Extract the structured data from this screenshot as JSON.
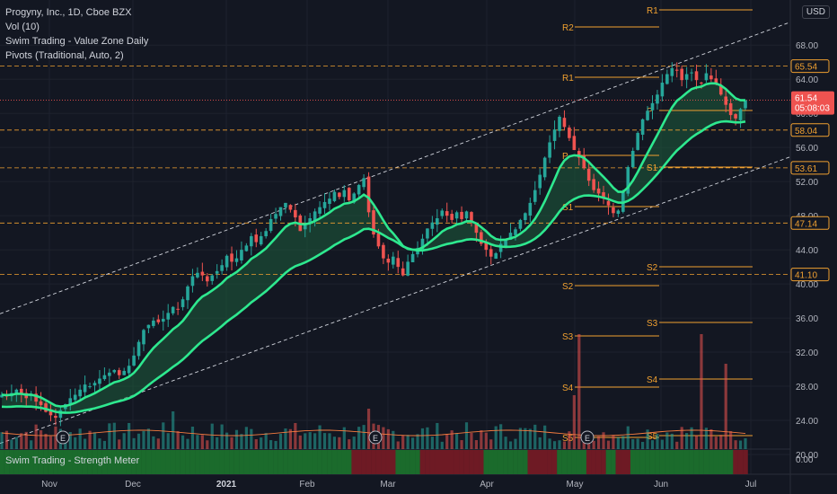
{
  "header": {
    "symbol_line": "Progyny, Inc., 1D, Cboe BZX",
    "indicators": [
      "Vol (10)",
      "Swim Trading - Value Zone Daily",
      "Pivots (Traditional, Auto, 2)"
    ],
    "currency": "USD"
  },
  "lower_panel": {
    "title": "Swim Trading - Strength Meter",
    "tick": "0.00"
  },
  "colors": {
    "background": "#131722",
    "up": "#26a69a",
    "down": "#ef5350",
    "band": "#2ee88f",
    "pivot": "#f0a030",
    "strength_green": "#1b6b2c",
    "strength_red": "#6e1a24"
  },
  "chart_data": {
    "type": "candlestick",
    "x_months": [
      "Nov",
      "Dec",
      "2021",
      "Feb",
      "Mar",
      "Apr",
      "May",
      "Jun",
      "Jul"
    ],
    "y_ticks": [
      "68.00",
      "64.00",
      "60.00",
      "56.00",
      "52.00",
      "48.00",
      "44.00",
      "40.00",
      "36.00",
      "32.00",
      "28.00",
      "24.00",
      "20.00"
    ],
    "price_labels": [
      {
        "text": "65.54",
        "style": "orange"
      },
      {
        "text": "61.54",
        "style": "red"
      },
      {
        "text": "05:08:03",
        "style": "red"
      },
      {
        "text": "58.04",
        "style": "orange"
      },
      {
        "text": "53.61",
        "style": "orange"
      },
      {
        "text": "47.14",
        "style": "orange"
      },
      {
        "text": "41.10",
        "style": "orange"
      }
    ],
    "pivot_labels": [
      "R1",
      "R2",
      "R1",
      "P",
      "P",
      "S1",
      "S1",
      "S2",
      "S2",
      "S3",
      "S3",
      "S4",
      "S4",
      "S5",
      "S5"
    ],
    "close_series": [
      27,
      26.8,
      27.2,
      27.6,
      27.1,
      26.6,
      27.0,
      26.2,
      25.8,
      25.0,
      24.6,
      24.3,
      25.2,
      25.9,
      26.6,
      27.0,
      27.6,
      28.2,
      28.0,
      28.4,
      28.9,
      29.3,
      29.6,
      29.9,
      29.3,
      29.8,
      30.4,
      31.6,
      33.2,
      34.6,
      35.2,
      35.7,
      35.5,
      35.9,
      36.6,
      37.3,
      37.0,
      38.2,
      39.7,
      40.9,
      41.3,
      41.0,
      40.3,
      41.0,
      41.5,
      42.2,
      43.3,
      42.6,
      43.0,
      44.0,
      44.5,
      45.6,
      44.9,
      45.6,
      46.2,
      47.6,
      48.2,
      49.0,
      49.5,
      48.7,
      47.8,
      46.2,
      46.9,
      47.7,
      48.5,
      49.0,
      49.6,
      50.0,
      50.8,
      50.2,
      51.0,
      49.8,
      50.6,
      51.6,
      52.4,
      48.4,
      45.8,
      44.4,
      43.0,
      42.5,
      43.2,
      42.0,
      41.0,
      42.6,
      43.5,
      44.2,
      45.3,
      46.5,
      47.2,
      47.7,
      48.6,
      48.0,
      47.5,
      48.4,
      47.6,
      48.5,
      47.3,
      46.0,
      44.7,
      44.0,
      43.2,
      43.6,
      44.7,
      45.3,
      46.0,
      46.4,
      47.5,
      48.3,
      49.5,
      51.0,
      52.8,
      54.8,
      56.6,
      58.1,
      59.6,
      58.4,
      57.1,
      55.7,
      54.8,
      53.6,
      52.1,
      51.0,
      50.6,
      50.0,
      49.2,
      48.3,
      48.6,
      50.8,
      53.7,
      55.6,
      57.7,
      59.3,
      60.3,
      61.2,
      62.2,
      63.6,
      64.6,
      65.3,
      65.0,
      63.9,
      64.6,
      64.8,
      63.9,
      63.6,
      64.7,
      64.0,
      63.4,
      62.2,
      61.0,
      59.8,
      59.4,
      60.5,
      61.54
    ],
    "channel": {
      "upper_start": 36.5,
      "upper_end": 69.5,
      "lower_start": 21.3,
      "lower_end": 53.7
    },
    "pivot_levels_recent": {
      "R1": 70.5,
      "R2": 66.5,
      "P": 58.04,
      "S1": 52.5,
      "S2": 40.5,
      "S3": 34.0,
      "S4": 27.5,
      "S5": 21.0
    },
    "pivot_levels_prior": {
      "R1": 63.0,
      "R2": 68.5,
      "P": 53.61,
      "S1": 47.14,
      "S2": 38.4,
      "S3": 32.5,
      "S4": 26.5,
      "S5": 20.5
    },
    "volume_spikes": [
      {
        "index": 118,
        "value": 1.0
      },
      {
        "index": 117,
        "value": 0.55
      },
      {
        "index": 148,
        "value": 0.85
      },
      {
        "index": 75,
        "value": 0.3
      }
    ],
    "ylim": [
      19,
      72
    ]
  }
}
